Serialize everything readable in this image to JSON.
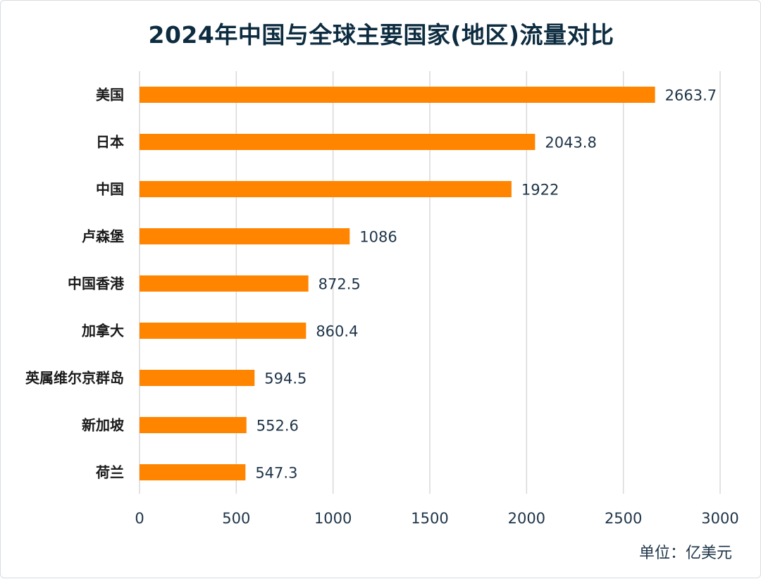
{
  "chart_data": {
    "type": "bar",
    "orientation": "horizontal",
    "title": "2024年中国与全球主要国家(地区)流量对比",
    "unit_label": "单位：亿美元",
    "categories": [
      "美国",
      "日本",
      "中国",
      "卢森堡",
      "中国香港",
      "加拿大",
      "英属维尔京群岛",
      "新加坡",
      "荷兰"
    ],
    "values": [
      2663.7,
      2043.8,
      1922,
      1086,
      872.5,
      860.4,
      594.5,
      552.6,
      547.3
    ],
    "value_labels": [
      "2663.7",
      "2043.8",
      "1922",
      "1086",
      "872.5",
      "860.4",
      "594.5",
      "552.6",
      "547.3"
    ],
    "xlim": [
      0,
      3000
    ],
    "xticks": [
      "0",
      "500",
      "1000",
      "1500",
      "2000",
      "2500",
      "3000"
    ],
    "grid": "vertical",
    "bar_color": "#FF8500",
    "grid_color": "#D9D9D9"
  }
}
